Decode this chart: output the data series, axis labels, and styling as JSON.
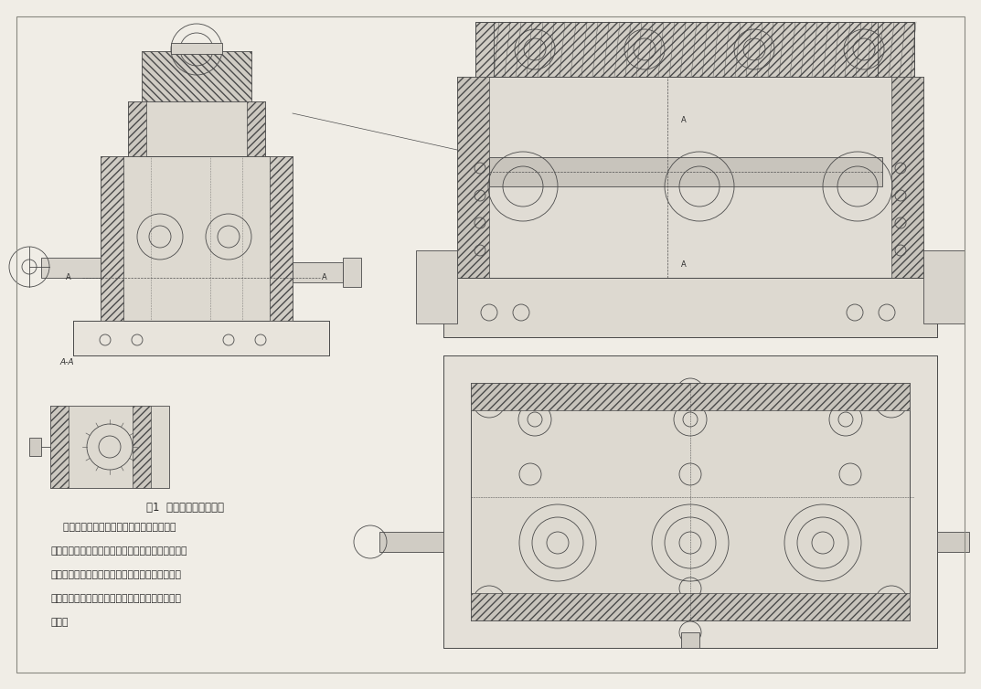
{
  "background_color": "#f0ede6",
  "page_width": 10.73,
  "page_height": 7.54,
  "title": "图1  三杠孔加工钻床夹具",
  "caption_lines": [
    "    本夹具用于在摇臂钻床上加工后托架的三杠",
    "孔。工件以底平面、侧面和盖板平面为定位基准，在",
    "支承钉和止推板上实现完全定位。为使工件装夹可",
    "靠，采用了辅助支承。采用手动螺旋压板机构夹紧",
    "工件。"
  ],
  "section_label": "A-A",
  "line_color": "#4a4a4a",
  "hatch_color": "#4a4a4a",
  "text_color": "#2a2a2a"
}
